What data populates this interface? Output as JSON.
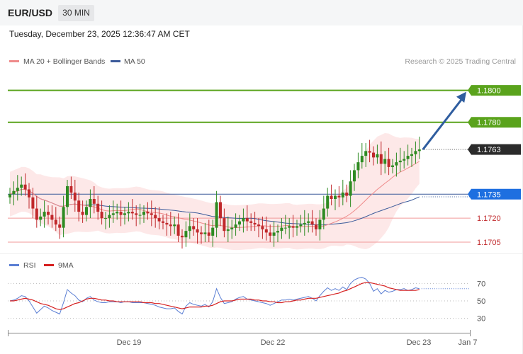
{
  "header": {
    "symbol": "EUR/USD",
    "timeframe": "30 MIN"
  },
  "timestamp": "Tuesday, December 23, 2025 12:36:47 AM CET",
  "legend": {
    "bb": "MA 20 + Bollinger Bands",
    "ma50": "MA 50",
    "credit": "Research © 2025 Trading Central",
    "rsi": "RSI",
    "ma9": "9MA"
  },
  "colors": {
    "bb": "#ef8b8b",
    "band_fill": "#fde4e4",
    "ma50": "#3b5a9a",
    "green": "#5aa31c",
    "up": "#2e8b22",
    "down": "#c0282b",
    "price_box": "#2b2b2b",
    "blue_box": "#1e6fe0",
    "arrow": "#2f5d9f",
    "rsi": "#5b7fd4",
    "ma9": "#d62020"
  },
  "chart_data": {
    "type": "candlestick",
    "x_labels": [
      "Dec 19",
      "Dec 22",
      "Dec 23",
      "Jan 7"
    ],
    "y_range": [
      1.1697,
      1.1814
    ],
    "current_price": "1.1763",
    "levels": [
      {
        "value": 1.18,
        "label": "1.1800",
        "kind": "resistance"
      },
      {
        "value": 1.178,
        "label": "1.1780",
        "kind": "resistance"
      },
      {
        "value": 1.1735,
        "label": "1.1735",
        "kind": "pivot"
      },
      {
        "value": 1.172,
        "label": "1.1720",
        "kind": "support"
      },
      {
        "value": 1.1705,
        "label": "1.1705",
        "kind": "support"
      }
    ],
    "forecast_arrow": {
      "from": 1.1763,
      "to": 1.18
    },
    "closes": [
      1.1735,
      1.1737,
      1.1739,
      1.1741,
      1.1738,
      1.1733,
      1.1726,
      1.1719,
      1.1721,
      1.1724,
      1.1722,
      1.1719,
      1.1716,
      1.1714,
      1.1727,
      1.174,
      1.1736,
      1.1731,
      1.1724,
      1.1722,
      1.1727,
      1.1732,
      1.1729,
      1.1724,
      1.172,
      1.172,
      1.1722,
      1.1723,
      1.1724,
      1.1722,
      1.1723,
      1.1724,
      1.1723,
      1.1722,
      1.1722,
      1.1724,
      1.1723,
      1.1722,
      1.172,
      1.1718,
      1.1717,
      1.1716,
      1.1715,
      1.1716,
      1.1709,
      1.1708,
      1.1712,
      1.1715,
      1.1713,
      1.1711,
      1.171,
      1.1711,
      1.1709,
      1.1714,
      1.173,
      1.172,
      1.1712,
      1.1713,
      1.1714,
      1.1716,
      1.1718,
      1.172,
      1.1718,
      1.1717,
      1.1716,
      1.1715,
      1.1713,
      1.1711,
      1.1709,
      1.1711,
      1.1712,
      1.1714,
      1.1714,
      1.1715,
      1.1714,
      1.1715,
      1.1716,
      1.1717,
      1.1718,
      1.1716,
      1.1713,
      1.1719,
      1.1726,
      1.1734,
      1.1732,
      1.1734,
      1.1733,
      1.1736,
      1.1734,
      1.1743,
      1.175,
      1.1755,
      1.1759,
      1.1762,
      1.1761,
      1.1758,
      1.176,
      1.1754,
      1.1757,
      1.1752,
      1.1753,
      1.1755,
      1.1756,
      1.1757,
      1.1759,
      1.176,
      1.1762,
      1.1763
    ],
    "rsi": {
      "levels": [
        70,
        50,
        30
      ],
      "range": [
        20,
        80
      ],
      "values": [
        50,
        51,
        53,
        56,
        55,
        50,
        43,
        36,
        40,
        44,
        42,
        39,
        37,
        35,
        48,
        63,
        59,
        56,
        51,
        49,
        53,
        55,
        51,
        49,
        48,
        48,
        49,
        49,
        49,
        48,
        49,
        49,
        48,
        48,
        48,
        48,
        47,
        46,
        45,
        43,
        42,
        41,
        41,
        42,
        38,
        35,
        44,
        48,
        46,
        45,
        44,
        46,
        43,
        49,
        64,
        54,
        47,
        48,
        49,
        52,
        54,
        55,
        52,
        51,
        50,
        49,
        48,
        47,
        45,
        47,
        49,
        51,
        51,
        52,
        51,
        52,
        53,
        54,
        55,
        53,
        50,
        56,
        61,
        65,
        62,
        64,
        62,
        66,
        63,
        70,
        74,
        76,
        77,
        75,
        70,
        61,
        64,
        58,
        62,
        60,
        61,
        63,
        63,
        64,
        62,
        63,
        65,
        64
      ],
      "ma9": [
        50,
        50,
        51,
        52,
        53,
        52,
        51,
        49,
        47,
        46,
        45,
        43,
        41,
        40,
        41,
        43,
        45,
        47,
        48,
        50,
        52,
        53,
        53,
        52,
        51,
        51,
        50,
        50,
        49,
        49,
        49,
        49,
        49,
        49,
        49,
        48,
        48,
        48,
        47,
        47,
        46,
        45,
        44,
        43,
        42,
        41,
        42,
        43,
        43,
        43,
        43,
        44,
        44,
        45,
        47,
        49,
        50,
        50,
        50,
        51,
        52,
        52,
        52,
        52,
        51,
        51,
        50,
        50,
        49,
        49,
        48,
        48,
        49,
        49,
        50,
        51,
        51,
        52,
        53,
        53,
        53,
        54,
        55,
        56,
        57,
        58,
        59,
        61,
        62,
        64,
        66,
        68,
        70,
        71,
        71,
        70,
        69,
        68,
        67,
        65,
        64,
        63,
        62,
        62,
        62,
        62,
        62,
        63
      ]
    }
  }
}
